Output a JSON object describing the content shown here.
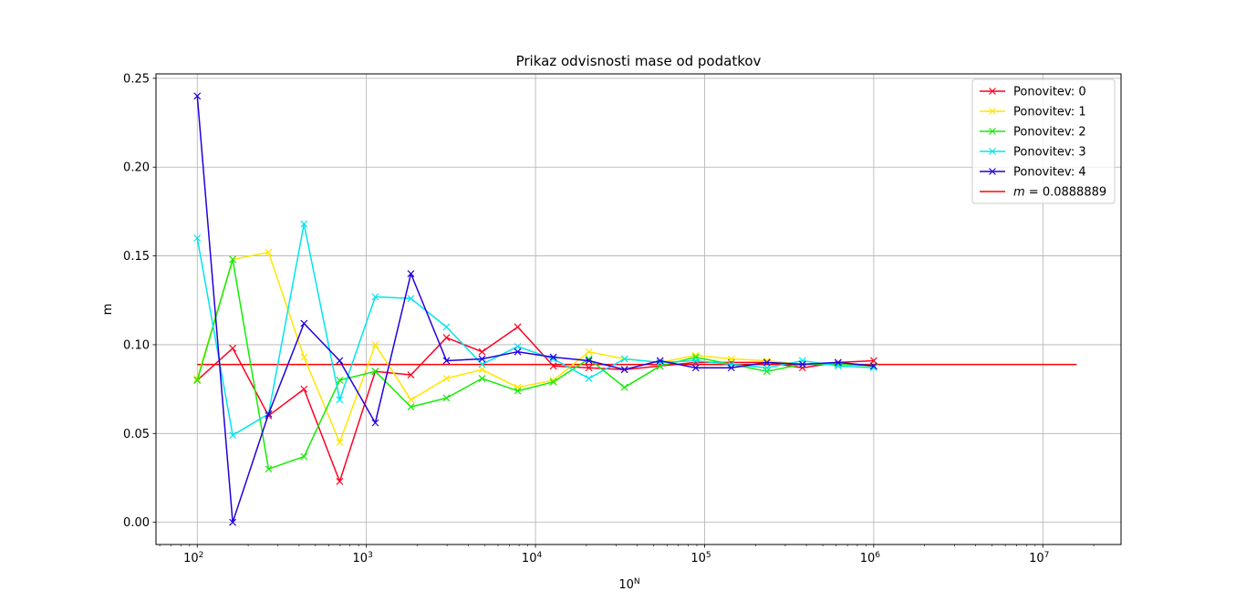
{
  "chart_data": {
    "type": "line",
    "title": "Prikaz odvisnosti mase od podatkov",
    "xlabel_base": "10",
    "xlabel_exp": "N",
    "ylabel": "m",
    "x_scale": "log",
    "xlim": [
      57,
      29000000
    ],
    "ylim": [
      -0.0125,
      0.2525
    ],
    "grid": true,
    "legend_position": "top-right",
    "x_major_ticks": [
      {
        "value": 100,
        "base": "10",
        "exp": "2"
      },
      {
        "value": 1000,
        "base": "10",
        "exp": "3"
      },
      {
        "value": 10000,
        "base": "10",
        "exp": "4"
      },
      {
        "value": 100000,
        "base": "10",
        "exp": "5"
      },
      {
        "value": 1000000,
        "base": "10",
        "exp": "6"
      },
      {
        "value": 10000000,
        "base": "10",
        "exp": "7"
      }
    ],
    "y_ticks": [
      {
        "value": 0.0,
        "label": "0.00"
      },
      {
        "value": 0.05,
        "label": "0.05"
      },
      {
        "value": 0.1,
        "label": "0.10"
      },
      {
        "value": 0.15,
        "label": "0.15"
      },
      {
        "value": 0.2,
        "label": "0.20"
      },
      {
        "value": 0.25,
        "label": "0.25"
      }
    ],
    "x": [
      100,
      162,
      264,
      428,
      695,
      1129,
      1833,
      2976,
      4833,
      7848,
      12743,
      20691,
      33598,
      54556,
      88587,
      143845,
      233572,
      379269,
      615848,
      1000000
    ],
    "series": [
      {
        "name": "Ponovitev: 0",
        "color": "#ff0022",
        "values": [
          0.08,
          0.098,
          0.06,
          0.075,
          0.023,
          0.085,
          0.083,
          0.104,
          0.096,
          0.11,
          0.088,
          0.087,
          0.086,
          0.088,
          0.09,
          0.09,
          0.09,
          0.087,
          0.09,
          0.091
        ]
      },
      {
        "name": "Ponovitev: 1",
        "color": "#ffe600",
        "values": [
          0.081,
          0.148,
          0.152,
          0.093,
          0.045,
          0.1,
          0.069,
          0.081,
          0.086,
          0.076,
          0.08,
          0.096,
          0.092,
          0.09,
          0.094,
          0.092,
          0.091,
          0.089,
          0.089,
          0.088
        ]
      },
      {
        "name": "Ponovitev: 2",
        "color": "#11ee00",
        "values": [
          0.08,
          0.148,
          0.03,
          0.037,
          0.08,
          0.085,
          0.065,
          0.07,
          0.081,
          0.074,
          0.079,
          0.092,
          0.076,
          0.088,
          0.093,
          0.089,
          0.085,
          0.089,
          0.089,
          0.088
        ]
      },
      {
        "name": "Ponovitev: 3",
        "color": "#00e5ee",
        "values": [
          0.16,
          0.049,
          0.061,
          0.168,
          0.069,
          0.127,
          0.126,
          0.11,
          0.089,
          0.099,
          0.092,
          0.081,
          0.092,
          0.09,
          0.091,
          0.089,
          0.087,
          0.091,
          0.088,
          0.087
        ]
      },
      {
        "name": "Ponovitev: 4",
        "color": "#2200dd",
        "values": [
          0.24,
          0.0,
          0.061,
          0.112,
          0.091,
          0.056,
          0.14,
          0.091,
          0.092,
          0.096,
          0.093,
          0.091,
          0.086,
          0.091,
          0.087,
          0.087,
          0.09,
          0.089,
          0.09,
          0.088
        ]
      }
    ],
    "hline": {
      "label_var": "m",
      "label_value": " = 0.0888889",
      "value": 0.0888889,
      "color": "#ff0000",
      "x_range": [
        100,
        15850000
      ]
    }
  }
}
